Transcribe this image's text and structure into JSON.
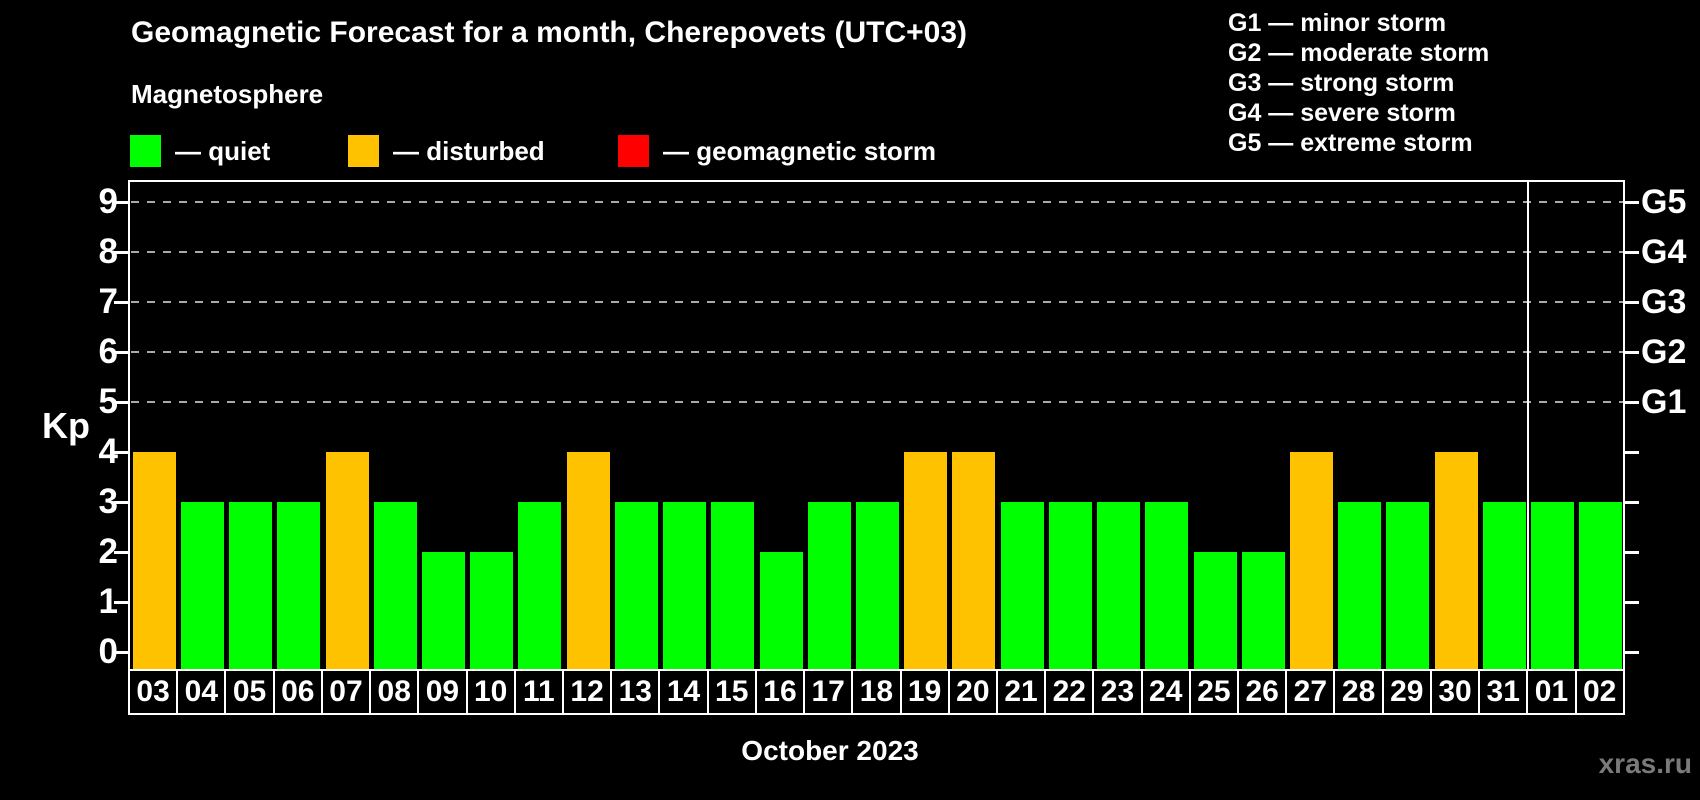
{
  "header": {
    "title": "Geomagnetic Forecast for a month, Cherepovets (UTC+03)",
    "subtitle": "Magnetosphere",
    "legend": [
      {
        "key": "quiet",
        "label": "— quiet",
        "color": "#00ff00"
      },
      {
        "key": "disturbed",
        "label": "— disturbed",
        "color": "#ffc200"
      },
      {
        "key": "storm",
        "label": "— geomagnetic storm",
        "color": "#ff0000"
      }
    ],
    "g_scale_legend": [
      "G1 — minor storm",
      "G2 — moderate storm",
      "G3 — strong storm",
      "G4 — severe storm",
      "G5 — extreme storm"
    ]
  },
  "chart_data": {
    "type": "bar",
    "title": "Geomagnetic Forecast for a month, Cherepovets (UTC+03)",
    "xlabel": "October 2023",
    "ylabel": "Kp",
    "ylim": [
      0,
      9
    ],
    "yticks": [
      0,
      1,
      2,
      3,
      4,
      5,
      6,
      7,
      8,
      9
    ],
    "grid": "dashed horizontal lines at Kp 5-9",
    "legend_position": "top-left",
    "categories": [
      "03",
      "04",
      "05",
      "06",
      "07",
      "08",
      "09",
      "10",
      "11",
      "12",
      "13",
      "14",
      "15",
      "16",
      "17",
      "18",
      "19",
      "20",
      "21",
      "22",
      "23",
      "24",
      "25",
      "26",
      "27",
      "28",
      "29",
      "30",
      "31",
      "01",
      "02"
    ],
    "values": [
      4,
      3,
      3,
      3,
      4,
      3,
      2,
      2,
      3,
      4,
      3,
      3,
      3,
      2,
      3,
      3,
      4,
      4,
      3,
      3,
      3,
      3,
      2,
      2,
      4,
      3,
      3,
      4,
      3,
      3,
      3
    ],
    "statuses": [
      "disturbed",
      "quiet",
      "quiet",
      "quiet",
      "disturbed",
      "quiet",
      "quiet",
      "quiet",
      "quiet",
      "disturbed",
      "quiet",
      "quiet",
      "quiet",
      "quiet",
      "quiet",
      "quiet",
      "disturbed",
      "disturbed",
      "quiet",
      "quiet",
      "quiet",
      "quiet",
      "quiet",
      "quiet",
      "disturbed",
      "quiet",
      "quiet",
      "disturbed",
      "quiet",
      "quiet",
      "quiet"
    ],
    "status_colors": {
      "quiet": "#00ff00",
      "disturbed": "#ffc200",
      "storm": "#ff0000"
    },
    "right_axis": [
      {
        "label": "G1",
        "kp": 5
      },
      {
        "label": "G2",
        "kp": 6
      },
      {
        "label": "G3",
        "kp": 7
      },
      {
        "label": "G4",
        "kp": 8
      },
      {
        "label": "G5",
        "kp": 9
      }
    ],
    "month_separator_after_day": "31"
  },
  "footer": {
    "xaxis_title": "October 2023",
    "watermark": "xras.ru"
  }
}
